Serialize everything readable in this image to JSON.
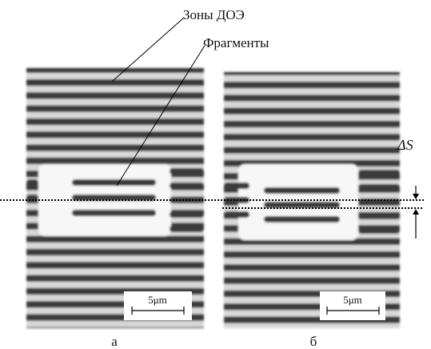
{
  "annotations": {
    "zones": "Зоны ДОЭ",
    "fragments": "Фрагменты",
    "delta_s": "ΔS"
  },
  "panels": [
    {
      "label": "а",
      "scale_bar": "5μm"
    },
    {
      "label": "б",
      "scale_bar": "5μm"
    }
  ]
}
